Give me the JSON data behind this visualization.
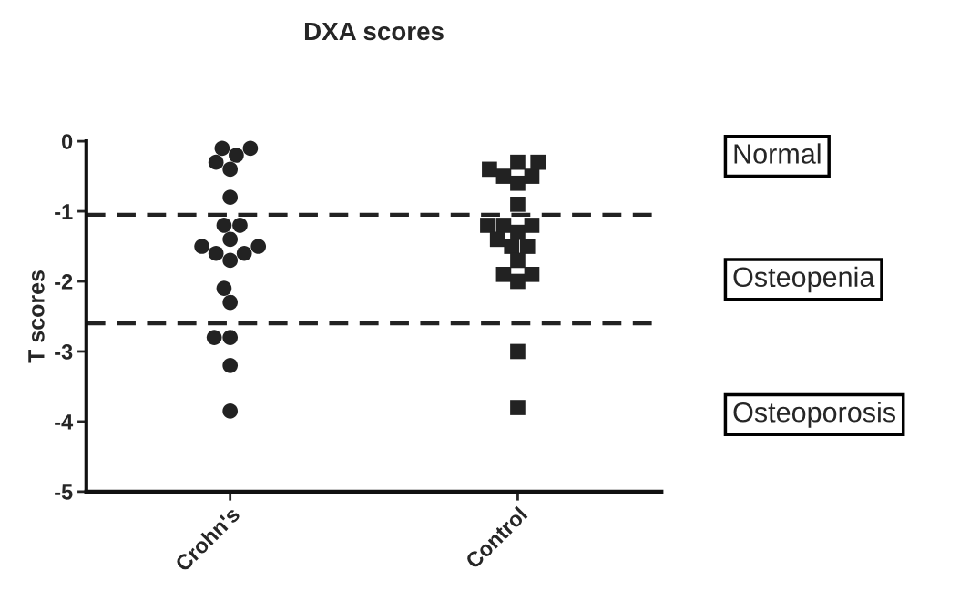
{
  "chart_data": {
    "type": "scatter",
    "title": "DXA scores",
    "ylabel": "T scores",
    "categories": [
      "Crohn's",
      "Control"
    ],
    "ylim": [
      -5,
      0
    ],
    "yticks": [
      0,
      -1,
      -2,
      -3,
      -4,
      -5
    ],
    "series": [
      {
        "color": "#222222",
        "marker": "circle",
        "x": [
          "Crohn's",
          "Crohn's",
          "Crohn's",
          "Crohn's",
          "Crohn's",
          "Crohn's",
          "Crohn's",
          "Crohn's",
          "Crohn's",
          "Crohn's",
          "Crohn's",
          "Crohn's",
          "Crohn's",
          "Crohn's",
          "Crohn's",
          "Crohn's",
          "Crohn's",
          "Crohn's",
          "Crohn's",
          "Crohn's"
        ],
        "values": [
          -0.1,
          -0.1,
          -0.2,
          -0.3,
          -0.4,
          -0.8,
          -1.2,
          -1.2,
          -1.5,
          -1.6,
          -1.7,
          -1.6,
          -1.5,
          -1.4,
          -2.1,
          -2.3,
          -2.8,
          -2.8,
          -3.2,
          -3.85
        ]
      },
      {
        "color": "#222222",
        "marker": "square",
        "x": [
          "Control",
          "Control",
          "Control",
          "Control",
          "Control",
          "Control",
          "Control",
          "Control",
          "Control",
          "Control",
          "Control",
          "Control",
          "Control",
          "Control",
          "Control",
          "Control",
          "Control",
          "Control",
          "Control",
          "Control"
        ],
        "values": [
          -0.3,
          -0.4,
          -0.5,
          -0.6,
          -0.5,
          -0.3,
          -0.9,
          -1.2,
          -1.3,
          -1.2,
          -1.2,
          -1.5,
          -1.5,
          -1.4,
          -1.7,
          -1.9,
          -2.0,
          -1.9,
          -3.0,
          -3.8
        ]
      }
    ],
    "ref_lines": [
      {
        "axis": "y",
        "value": -1.05,
        "line_style": "dashed",
        "color": "#222222"
      },
      {
        "axis": "y",
        "value": -2.6,
        "line_style": "dashed",
        "color": "#222222"
      }
    ],
    "annotations": [
      "Normal",
      "Osteopenia",
      "Osteoporosis"
    ]
  }
}
